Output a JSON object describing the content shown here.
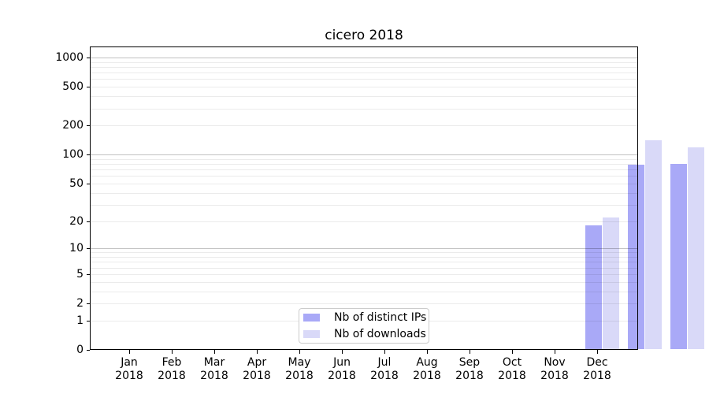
{
  "chart_data": {
    "type": "bar",
    "title": "cicero 2018",
    "year": "2018",
    "categories": [
      "Jan",
      "Feb",
      "Mar",
      "Apr",
      "May",
      "Jun",
      "Jul",
      "Aug",
      "Sep",
      "Oct",
      "Nov",
      "Dec"
    ],
    "series": [
      {
        "name": "Nb of distinct IPs",
        "color": "#a9a9f7",
        "values": [
          0,
          0,
          0,
          0,
          0,
          0,
          0,
          0,
          0,
          18,
          78,
          80
        ]
      },
      {
        "name": "Nb of downloads",
        "color": "#d9d9f8",
        "values": [
          0,
          0,
          0,
          0,
          0,
          0,
          0,
          0,
          0,
          22,
          140,
          120
        ]
      }
    ],
    "xlabel": "",
    "ylabel": "",
    "y_scale": "log1p",
    "y_max": 1300,
    "y_ticks": [
      1000,
      500,
      200,
      100,
      50,
      20,
      10,
      5,
      2,
      1,
      0
    ],
    "y_minor_gridlines": [
      1,
      2,
      3,
      4,
      5,
      6,
      7,
      8,
      9,
      20,
      30,
      40,
      50,
      60,
      70,
      80,
      90,
      200,
      300,
      400,
      500,
      600,
      700,
      800,
      900
    ],
    "y_major_gridlines": [
      10,
      100,
      1000
    ],
    "grid": true,
    "legend_position": "lower center",
    "colors": {
      "axis": "#000000",
      "legend_border": "#cccccc",
      "background": "#ffffff"
    }
  }
}
